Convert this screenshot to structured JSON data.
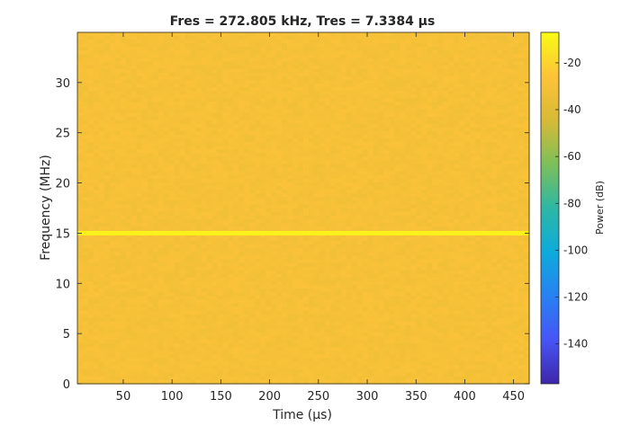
{
  "chart_data": {
    "type": "heatmap",
    "title": "Fres = 272.805 kHz, Tres = 7.3384 µs",
    "xlabel": "Time (µs)",
    "ylabel": "Frequency (MHz)",
    "colorbar_label": "Power (dB)",
    "xlim": [
      3,
      466
    ],
    "ylim": [
      0,
      35
    ],
    "x_ticks": [
      50,
      100,
      150,
      200,
      250,
      300,
      350,
      400,
      450
    ],
    "y_ticks": [
      0,
      5,
      10,
      15,
      20,
      25,
      30
    ],
    "colorbar_range_db": [
      -157,
      -7
    ],
    "colorbar_ticks": [
      -20,
      -40,
      -60,
      -80,
      -100,
      -120,
      -140
    ],
    "colormap": "parula",
    "background_power_db": -30,
    "tone": {
      "frequency_mhz": 15,
      "power_db": -10
    },
    "grid": false
  }
}
